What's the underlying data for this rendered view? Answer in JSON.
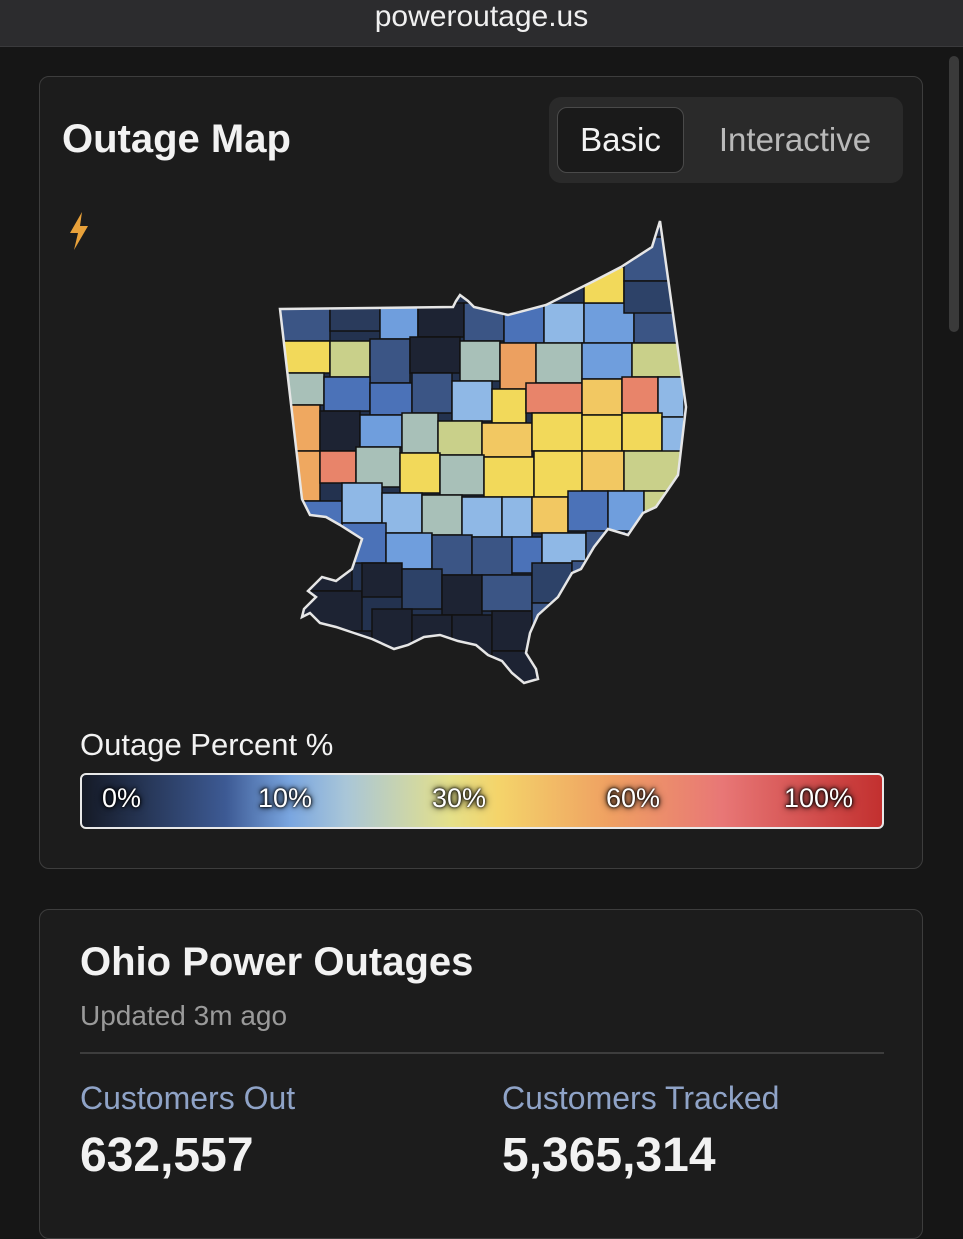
{
  "browser": {
    "url": "poweroutage.us"
  },
  "map_card": {
    "title": "Outage Map",
    "view_options": [
      "Basic",
      "Interactive"
    ],
    "selected_view": "Basic",
    "icon": "lightning-bolt-icon",
    "legend": {
      "title": "Outage Percent %",
      "labels": [
        "0%",
        "10%",
        "30%",
        "60%",
        "100%"
      ]
    }
  },
  "outages": {
    "title": "Ohio Power Outages",
    "updated": "Updated 3m ago",
    "customers_out_label": "Customers Out",
    "customers_out": "632,557",
    "customers_tracked_label": "Customers Tracked",
    "customers_tracked": "5,365,314"
  },
  "colors": {
    "background": "#161616",
    "card": "#1c1c1c",
    "accent_label": "#8fa3c7",
    "bolt": "#e8a13a"
  }
}
